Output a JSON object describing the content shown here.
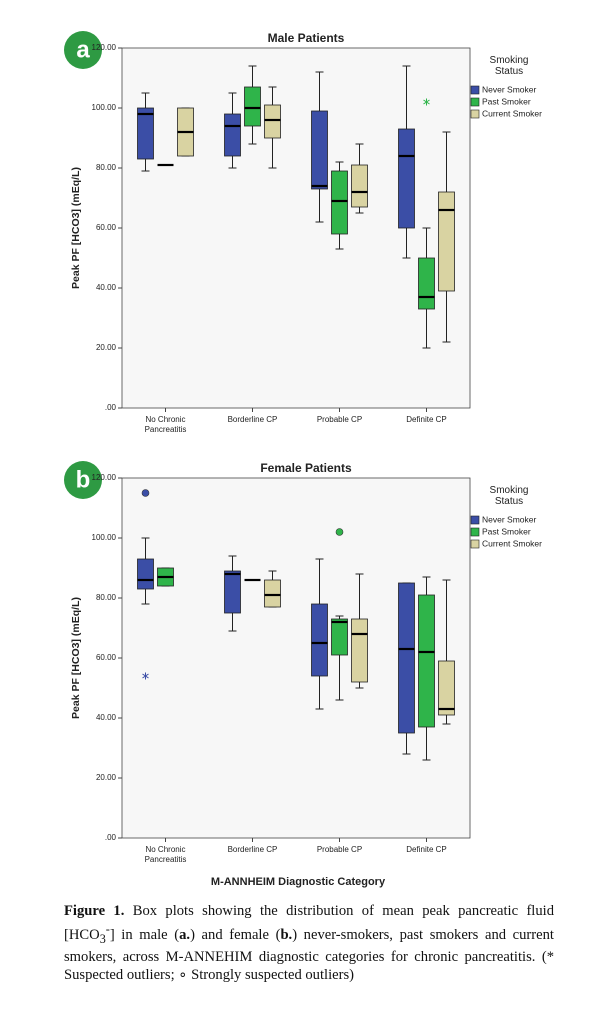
{
  "chart_data": [
    {
      "type": "boxplot",
      "panel": "a",
      "title": "Male Patients",
      "y_label": "Peak PF [HCO3] (mEq/L)",
      "categories": [
        "No Chronic Pancreatitis",
        "Borderline CP",
        "Probable CP",
        "Definite CP"
      ],
      "ylim": [
        0,
        120
      ],
      "yticks": [
        {
          "value": 0,
          "label": ".00"
        },
        {
          "value": 20,
          "label": "20.00"
        },
        {
          "value": 40,
          "label": "40.00"
        },
        {
          "value": 60,
          "label": "60.00"
        },
        {
          "value": 80,
          "label": "80.00"
        },
        {
          "value": 100,
          "label": "100.00"
        },
        {
          "value": 120,
          "label": "120.00"
        }
      ],
      "legend_title": "Smoking Status",
      "legend_position": "right",
      "series": [
        {
          "name": "Never Smoker",
          "color": "#3b4ea6",
          "values": [
            {
              "min": 79,
              "q1": 83,
              "median": 98,
              "q3": 100,
              "max": 105
            },
            {
              "min": 80,
              "q1": 84,
              "median": 94,
              "q3": 98,
              "max": 105
            },
            {
              "min": 62,
              "q1": 73,
              "median": 74,
              "q3": 99,
              "max": 112
            },
            {
              "min": 50,
              "q1": 60,
              "median": 84,
              "q3": 93,
              "max": 114
            }
          ],
          "outliers": [
            [],
            [],
            [],
            []
          ],
          "extreme_outliers": [
            [],
            [],
            [],
            []
          ]
        },
        {
          "name": "Past Smoker",
          "color": "#2fb44a",
          "values": [
            {
              "min": 81,
              "q1": 81,
              "median": 81,
              "q3": 81,
              "max": 81
            },
            {
              "min": 88,
              "q1": 94,
              "median": 100,
              "q3": 107,
              "max": 114
            },
            {
              "min": 53,
              "q1": 58,
              "median": 69,
              "q3": 79,
              "max": 82
            },
            {
              "min": 20,
              "q1": 33,
              "median": 37,
              "q3": 50,
              "max": 60
            }
          ],
          "outliers": [
            [],
            [],
            [],
            [
              102
            ]
          ],
          "extreme_outliers": [
            [],
            [],
            [],
            []
          ]
        },
        {
          "name": "Current Smoker",
          "color": "#d9d3a2",
          "values": [
            {
              "min": 84,
              "q1": 84,
              "median": 92,
              "q3": 100,
              "max": 100
            },
            {
              "min": 80,
              "q1": 90,
              "median": 96,
              "q3": 101,
              "max": 107
            },
            {
              "min": 65,
              "q1": 67,
              "median": 72,
              "q3": 81,
              "max": 88
            },
            {
              "min": 22,
              "q1": 39,
              "median": 66,
              "q3": 72,
              "max": 92
            }
          ],
          "outliers": [
            [],
            [],
            [],
            []
          ],
          "extreme_outliers": [
            [],
            [],
            [],
            []
          ]
        }
      ]
    },
    {
      "type": "boxplot",
      "panel": "b",
      "title": "Female Patients",
      "y_label": "Peak PF [HCO3] (mEq/L)",
      "x_label": "M-ANNHEIM Diagnostic Category",
      "categories": [
        "No Chronic Pancreatitis",
        "Borderline CP",
        "Probable CP",
        "Definite CP"
      ],
      "ylim": [
        0,
        120
      ],
      "yticks": [
        {
          "value": 0,
          "label": ".00"
        },
        {
          "value": 20,
          "label": "20.00"
        },
        {
          "value": 40,
          "label": "40.00"
        },
        {
          "value": 60,
          "label": "60.00"
        },
        {
          "value": 80,
          "label": "80.00"
        },
        {
          "value": 100,
          "label": "100.00"
        },
        {
          "value": 120,
          "label": "120.00"
        }
      ],
      "legend_title": "Smoking Status",
      "legend_position": "right",
      "series": [
        {
          "name": "Never Smoker",
          "color": "#3b4ea6",
          "values": [
            {
              "min": 78,
              "q1": 83,
              "median": 86,
              "q3": 93,
              "max": 100
            },
            {
              "min": 69,
              "q1": 75,
              "median": 88,
              "q3": 89,
              "max": 94
            },
            {
              "min": 43,
              "q1": 54,
              "median": 65,
              "q3": 78,
              "max": 93
            },
            {
              "min": 28,
              "q1": 35,
              "median": 63,
              "q3": 85,
              "max": 85
            }
          ],
          "outliers": [
            [
              54
            ],
            [],
            [],
            []
          ],
          "extreme_outliers": [
            [
              115
            ],
            [],
            [],
            []
          ]
        },
        {
          "name": "Past Smoker",
          "color": "#2fb44a",
          "values": [
            {
              "min": 84,
              "q1": 84,
              "median": 87,
              "q3": 90,
              "max": 90
            },
            {
              "min": 86,
              "q1": 86,
              "median": 86,
              "q3": 86,
              "max": 86
            },
            {
              "min": 46,
              "q1": 61,
              "median": 72,
              "q3": 73,
              "max": 74
            },
            {
              "min": 26,
              "q1": 37,
              "median": 62,
              "q3": 81,
              "max": 87
            }
          ],
          "outliers": [
            [],
            [],
            [],
            []
          ],
          "extreme_outliers": [
            [],
            [],
            [
              102
            ],
            []
          ]
        },
        {
          "name": "Current Smoker",
          "color": "#d9d3a2",
          "values": [
            null,
            {
              "min": 77,
              "q1": 77,
              "median": 81,
              "q3": 86,
              "max": 89
            },
            {
              "min": 50,
              "q1": 52,
              "median": 68,
              "q3": 73,
              "max": 88
            },
            {
              "min": 38,
              "q1": 41,
              "median": 43,
              "q3": 59,
              "max": 86
            }
          ],
          "outliers": [
            [],
            [],
            [],
            []
          ],
          "extreme_outliers": [
            [],
            [],
            [],
            []
          ]
        }
      ]
    }
  ],
  "caption": {
    "label": "Figure 1.",
    "parts": [
      "Box plots showing the distribution of mean peak pancreatic fluid [HCO",
      "3",
      "-",
      "] in male (",
      "a.",
      ") and female (",
      "b.",
      ") never-smokers, past smokers and current smokers, across M-ANNEHIM diagnostic categories for chronic pancreatitis. (* Suspected outliers; ∘ Strongly suspected outliers)"
    ]
  }
}
